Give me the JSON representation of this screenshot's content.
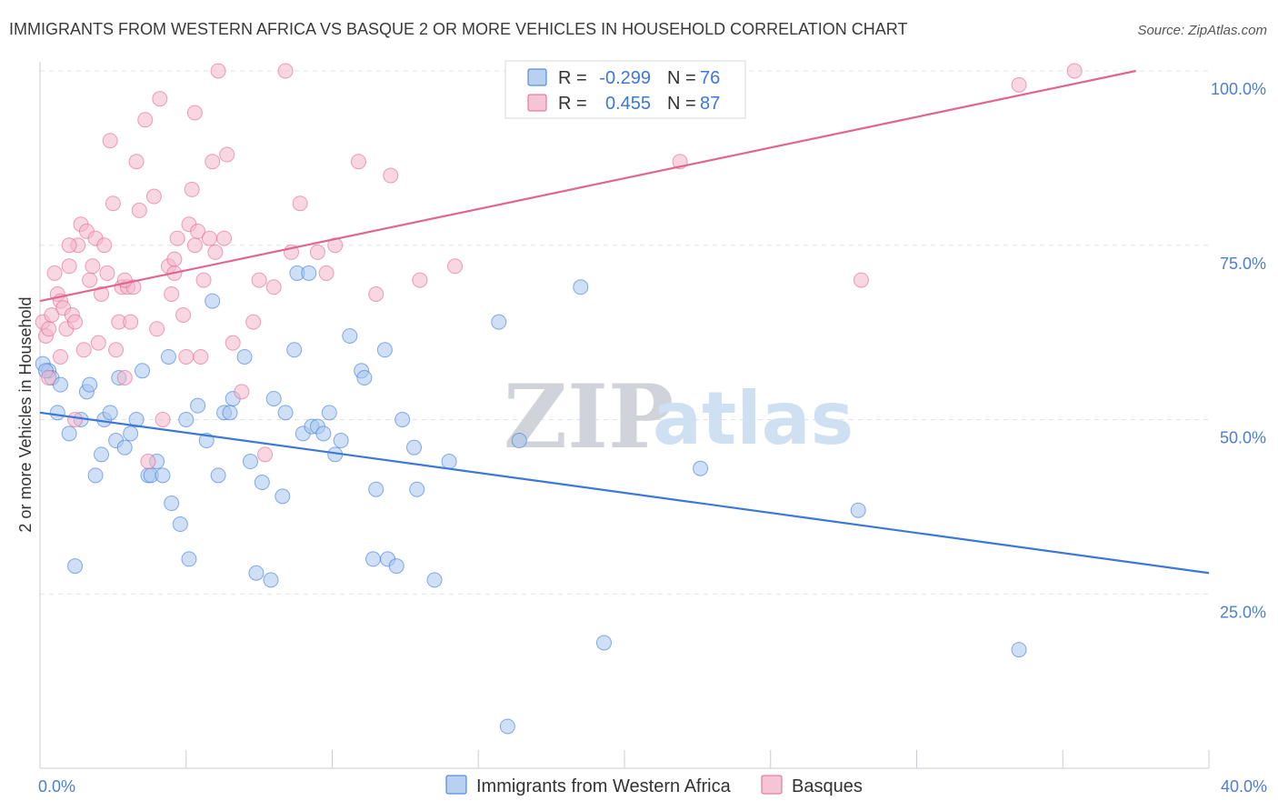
{
  "title": "IMMIGRANTS FROM WESTERN AFRICA VS BASQUE 2 OR MORE VEHICLES IN HOUSEHOLD CORRELATION CHART",
  "source": "Source: ZipAtlas.com",
  "watermark": {
    "zip": "ZIP",
    "atlas": "atlas"
  },
  "colors": {
    "blue": "#3b78d8",
    "blue_fill": "#a8c6ee",
    "pink": "#e06690",
    "pink_fill": "#f4b6ca",
    "grid": "#dde3ea",
    "tick_label": "#4d7fd1"
  },
  "legend": {
    "r_label": "R =",
    "n_label": "N =",
    "rows": [
      {
        "r": "-0.299",
        "n": "76"
      },
      {
        "r": "0.455",
        "n": "87"
      }
    ]
  },
  "chart_data": {
    "type": "scatter",
    "ylabel": "2 or more Vehicles in Household",
    "xlim": [
      0,
      40
    ],
    "ylim": [
      0,
      100
    ],
    "x_tick_labels": [
      "0.0%",
      "40.0%"
    ],
    "y_ticks": [
      25,
      50,
      75,
      100
    ],
    "y_tick_labels": [
      "25.0%",
      "50.0%",
      "75.0%",
      "100.0%"
    ],
    "grid": "horizontal dashed",
    "legend_position": "top-center",
    "series": [
      {
        "name": "Immigrants from Western Africa",
        "trend": [
          [
            0,
            51
          ],
          [
            40,
            28
          ]
        ],
        "points": [
          [
            0.1,
            58
          ],
          [
            0.3,
            57
          ],
          [
            0.4,
            56
          ],
          [
            0.6,
            51
          ],
          [
            0.7,
            55
          ],
          [
            1.0,
            48
          ],
          [
            1.2,
            29
          ],
          [
            1.4,
            50
          ],
          [
            1.6,
            54
          ],
          [
            1.7,
            55
          ],
          [
            1.9,
            42
          ],
          [
            2.1,
            45
          ],
          [
            2.2,
            50
          ],
          [
            2.4,
            51
          ],
          [
            2.6,
            47
          ],
          [
            2.7,
            56
          ],
          [
            2.9,
            46
          ],
          [
            3.1,
            48
          ],
          [
            3.3,
            50
          ],
          [
            3.5,
            57
          ],
          [
            3.7,
            42
          ],
          [
            3.8,
            42
          ],
          [
            4.0,
            44
          ],
          [
            4.2,
            42
          ],
          [
            4.4,
            59
          ],
          [
            4.5,
            38
          ],
          [
            4.8,
            35
          ],
          [
            5.0,
            50
          ],
          [
            5.1,
            30
          ],
          [
            5.4,
            52
          ],
          [
            5.7,
            47
          ],
          [
            5.9,
            67
          ],
          [
            6.1,
            42
          ],
          [
            6.3,
            51
          ],
          [
            6.5,
            51
          ],
          [
            6.6,
            53
          ],
          [
            7.0,
            59
          ],
          [
            7.2,
            44
          ],
          [
            7.4,
            28
          ],
          [
            7.6,
            41
          ],
          [
            7.9,
            27
          ],
          [
            8.0,
            53
          ],
          [
            8.3,
            39
          ],
          [
            8.4,
            51
          ],
          [
            8.7,
            60
          ],
          [
            8.8,
            71
          ],
          [
            9.0,
            48
          ],
          [
            9.2,
            71
          ],
          [
            9.3,
            49
          ],
          [
            9.5,
            49
          ],
          [
            9.7,
            48
          ],
          [
            9.9,
            51
          ],
          [
            10.1,
            45
          ],
          [
            10.3,
            47
          ],
          [
            10.6,
            62
          ],
          [
            11.0,
            57
          ],
          [
            11.1,
            56
          ],
          [
            11.4,
            30
          ],
          [
            11.5,
            40
          ],
          [
            11.8,
            60
          ],
          [
            11.9,
            30
          ],
          [
            12.2,
            29
          ],
          [
            12.4,
            50
          ],
          [
            12.8,
            46
          ],
          [
            12.9,
            40
          ],
          [
            13.5,
            27
          ],
          [
            14.0,
            44
          ],
          [
            15.7,
            64
          ],
          [
            16.0,
            6
          ],
          [
            16.4,
            47
          ],
          [
            18.5,
            69
          ],
          [
            19.3,
            18
          ],
          [
            22.6,
            43
          ],
          [
            28.0,
            37
          ],
          [
            33.5,
            17
          ],
          [
            0.2,
            57
          ]
        ]
      },
      {
        "name": "Basques",
        "trend": [
          [
            0,
            67
          ],
          [
            37.5,
            100
          ]
        ],
        "points": [
          [
            0.1,
            64
          ],
          [
            0.2,
            62
          ],
          [
            0.3,
            63
          ],
          [
            0.4,
            65
          ],
          [
            0.5,
            71
          ],
          [
            0.6,
            68
          ],
          [
            0.7,
            67
          ],
          [
            0.7,
            59
          ],
          [
            0.8,
            66
          ],
          [
            0.9,
            63
          ],
          [
            1.0,
            72
          ],
          [
            1.1,
            65
          ],
          [
            1.2,
            64
          ],
          [
            1.3,
            75
          ],
          [
            1.4,
            78
          ],
          [
            1.5,
            60
          ],
          [
            1.6,
            77
          ],
          [
            1.7,
            70
          ],
          [
            1.8,
            72
          ],
          [
            1.9,
            76
          ],
          [
            2.0,
            61
          ],
          [
            2.1,
            68
          ],
          [
            2.2,
            75
          ],
          [
            2.3,
            71
          ],
          [
            2.4,
            90
          ],
          [
            2.5,
            81
          ],
          [
            2.6,
            60
          ],
          [
            2.7,
            64
          ],
          [
            2.8,
            69
          ],
          [
            2.9,
            56
          ],
          [
            3.0,
            69
          ],
          [
            3.1,
            64
          ],
          [
            3.2,
            69
          ],
          [
            3.3,
            87
          ],
          [
            3.4,
            80
          ],
          [
            3.6,
            93
          ],
          [
            3.7,
            44
          ],
          [
            3.9,
            82
          ],
          [
            4.0,
            63
          ],
          [
            4.1,
            96
          ],
          [
            4.2,
            50
          ],
          [
            4.4,
            72
          ],
          [
            4.5,
            68
          ],
          [
            4.6,
            71
          ],
          [
            4.7,
            76
          ],
          [
            4.9,
            65
          ],
          [
            5.0,
            59
          ],
          [
            5.1,
            78
          ],
          [
            5.2,
            83
          ],
          [
            5.3,
            75
          ],
          [
            5.4,
            77
          ],
          [
            5.5,
            59
          ],
          [
            5.6,
            70
          ],
          [
            5.8,
            76
          ],
          [
            5.9,
            87
          ],
          [
            6.0,
            74
          ],
          [
            6.1,
            100
          ],
          [
            6.3,
            76
          ],
          [
            6.4,
            88
          ],
          [
            6.6,
            61
          ],
          [
            6.9,
            54
          ],
          [
            7.3,
            64
          ],
          [
            7.5,
            70
          ],
          [
            7.7,
            45
          ],
          [
            8.0,
            69
          ],
          [
            8.4,
            100
          ],
          [
            8.6,
            74
          ],
          [
            8.9,
            81
          ],
          [
            9.5,
            74
          ],
          [
            9.8,
            71
          ],
          [
            10.1,
            75
          ],
          [
            10.9,
            87
          ],
          [
            11.5,
            68
          ],
          [
            12.0,
            85
          ],
          [
            13.0,
            70
          ],
          [
            14.2,
            72
          ],
          [
            17.3,
            100
          ],
          [
            21.9,
            87
          ],
          [
            28.1,
            70
          ],
          [
            33.5,
            98
          ],
          [
            35.4,
            100
          ],
          [
            1.2,
            50
          ],
          [
            0.3,
            56
          ],
          [
            2.9,
            70
          ],
          [
            4.6,
            73
          ],
          [
            5.3,
            94
          ],
          [
            1.0,
            75
          ]
        ]
      }
    ]
  }
}
